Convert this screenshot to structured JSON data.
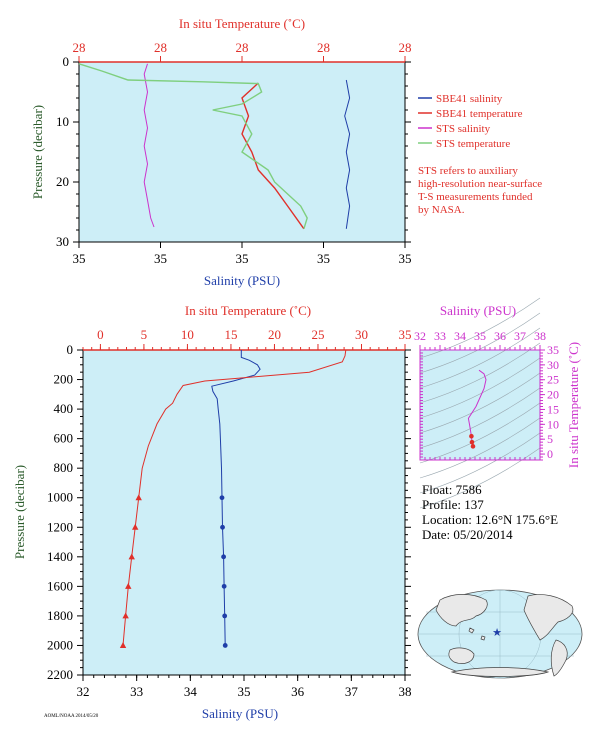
{
  "colors": {
    "plot_bg": "#cdeef7",
    "salinity": "#1f3ea8",
    "temperature": "#e0302a",
    "sts_salinity": "#cc33cc",
    "sts_temperature": "#7fcf7f",
    "pressure_label": "#2a5a2a",
    "inset_axis": "#cc33cc"
  },
  "note": {
    "lines": [
      "STS refers to auxiliary",
      "high-resolution near-surface",
      "T-S measurements funded",
      "by NASA."
    ]
  },
  "float_info": {
    "float": "Float:  7586",
    "profile": "Profile:  137",
    "location": "Location:  12.6°N  175.6°E",
    "date": "Date:  05/20/2014"
  },
  "footer_code": "AOML/NOAA 2014/05/20",
  "chart_data": [
    {
      "id": "near-surface",
      "type": "line",
      "title": "",
      "top_axis_label": "In situ Temperature (˚C)",
      "top_tick_labels": [
        "28",
        "28",
        "28",
        "28",
        "28"
      ],
      "bottom_axis_label": "Salinity (PSU)",
      "bottom_tick_labels": [
        "35",
        "35",
        "35",
        "35",
        "35"
      ],
      "ylabel": "Pressure (decibar)",
      "ylim": [
        0,
        30
      ],
      "y_ticks": [
        0,
        10,
        20,
        30
      ],
      "legend_position": "right",
      "series": [
        {
          "name": "SBE41 salinity",
          "color": "#1f3ea8",
          "axis": "bottom",
          "points": [
            [
              0.82,
              3
            ],
            [
              0.83,
              6
            ],
            [
              0.815,
              9
            ],
            [
              0.83,
              12
            ],
            [
              0.82,
              15
            ],
            [
              0.83,
              18
            ],
            [
              0.82,
              21
            ],
            [
              0.83,
              24
            ],
            [
              0.82,
              27.8
            ]
          ]
        },
        {
          "name": "SBE41 temperature",
          "color": "#e0302a",
          "axis": "top",
          "points": [
            [
              0.55,
              3.5
            ],
            [
              0.5,
              6
            ],
            [
              0.52,
              9
            ],
            [
              0.5,
              12
            ],
            [
              0.53,
              15
            ],
            [
              0.55,
              18
            ],
            [
              0.6,
              21
            ],
            [
              0.64,
              24
            ],
            [
              0.69,
              27.8
            ]
          ]
        },
        {
          "name": "STS salinity",
          "color": "#cc33cc",
          "axis": "bottom",
          "points": [
            [
              0.21,
              0.3
            ],
            [
              0.2,
              2
            ],
            [
              0.21,
              5
            ],
            [
              0.2,
              8
            ],
            [
              0.21,
              11
            ],
            [
              0.2,
              14
            ],
            [
              0.21,
              17
            ],
            [
              0.2,
              20
            ],
            [
              0.21,
              23
            ],
            [
              0.22,
              26
            ],
            [
              0.23,
              27.5
            ]
          ]
        },
        {
          "name": "STS temperature",
          "color": "#7fcf7f",
          "axis": "top",
          "points": [
            [
              0.0,
              0.3
            ],
            [
              0.07,
              1.5
            ],
            [
              0.15,
              3
            ],
            [
              0.38,
              3.3
            ],
            [
              0.55,
              3.6
            ],
            [
              0.56,
              5
            ],
            [
              0.5,
              7
            ],
            [
              0.41,
              8
            ],
            [
              0.5,
              9
            ],
            [
              0.53,
              12
            ],
            [
              0.5,
              15
            ],
            [
              0.58,
              18
            ],
            [
              0.6,
              20
            ],
            [
              0.64,
              22
            ],
            [
              0.68,
              24
            ],
            [
              0.7,
              26
            ],
            [
              0.69,
              27.8
            ]
          ]
        }
      ]
    },
    {
      "id": "full-profile",
      "type": "line",
      "title": "",
      "top_axis_label": "In situ Temperature (˚C)",
      "top_tick_labels": [
        "0",
        "5",
        "10",
        "15",
        "20",
        "25",
        "30",
        "35"
      ],
      "xlim_top": [
        -2,
        35
      ],
      "bottom_axis_label": "Salinity (PSU)",
      "bottom_tick_labels": [
        "32",
        "33",
        "34",
        "35",
        "36",
        "37",
        "38"
      ],
      "xlim_bottom": [
        32,
        38
      ],
      "ylabel": "Pressure (decibar)",
      "ylim": [
        0,
        2200
      ],
      "y_ticks": [
        0,
        200,
        400,
        600,
        800,
        1000,
        1200,
        1400,
        1600,
        1800,
        2000,
        2200
      ],
      "series": [
        {
          "name": "Salinity",
          "color": "#1f3ea8",
          "axis": "bottom",
          "points": [
            [
              34.95,
              0
            ],
            [
              34.95,
              50
            ],
            [
              35.1,
              70
            ],
            [
              35.25,
              100
            ],
            [
              35.3,
              130
            ],
            [
              35.2,
              170
            ],
            [
              34.8,
              210
            ],
            [
              34.4,
              245
            ],
            [
              34.42,
              280
            ],
            [
              34.5,
              330
            ],
            [
              34.52,
              400
            ],
            [
              34.55,
              500
            ],
            [
              34.56,
              600
            ],
            [
              34.58,
              800
            ],
            [
              34.59,
              1000
            ],
            [
              34.6,
              1200
            ],
            [
              34.62,
              1400
            ],
            [
              34.63,
              1600
            ],
            [
              34.64,
              1800
            ],
            [
              34.65,
              2000
            ]
          ]
        },
        {
          "name": "Temperature",
          "color": "#e0302a",
          "axis": "top",
          "points": [
            [
              28.2,
              0
            ],
            [
              28.1,
              40
            ],
            [
              27.8,
              80
            ],
            [
              24,
              150
            ],
            [
              16,
              190
            ],
            [
              12,
              210
            ],
            [
              9.5,
              240
            ],
            [
              8.8,
              300
            ],
            [
              8.3,
              360
            ],
            [
              7.5,
              400
            ],
            [
              6.5,
              500
            ],
            [
              5.5,
              650
            ],
            [
              4.8,
              800
            ],
            [
              4.4,
              1000
            ],
            [
              4.0,
              1200
            ],
            [
              3.6,
              1400
            ],
            [
              3.2,
              1600
            ],
            [
              2.9,
              1800
            ],
            [
              2.6,
              2000
            ]
          ]
        }
      ]
    },
    {
      "id": "ts-inset",
      "type": "line",
      "title": "",
      "top_axis_label": "Salinity (PSU)",
      "top_tick_labels": [
        "32",
        "33",
        "34",
        "35",
        "36",
        "37",
        "38"
      ],
      "xlim": [
        32,
        38
      ],
      "right_axis_label": "In situ Temperature (˚C)",
      "right_tick_labels": [
        "0",
        "5",
        "10",
        "15",
        "20",
        "25",
        "30",
        "35"
      ],
      "ylim": [
        -2,
        35
      ],
      "series": [
        {
          "name": "T-S",
          "color": "#cc33cc",
          "points": [
            [
              34.65,
              2.6
            ],
            [
              34.6,
              4
            ],
            [
              34.57,
              6
            ],
            [
              34.5,
              9
            ],
            [
              34.42,
              12
            ],
            [
              34.8,
              16
            ],
            [
              35.2,
              22
            ],
            [
              35.3,
              25
            ],
            [
              35.2,
              27
            ],
            [
              34.95,
              28.2
            ]
          ]
        }
      ]
    }
  ]
}
